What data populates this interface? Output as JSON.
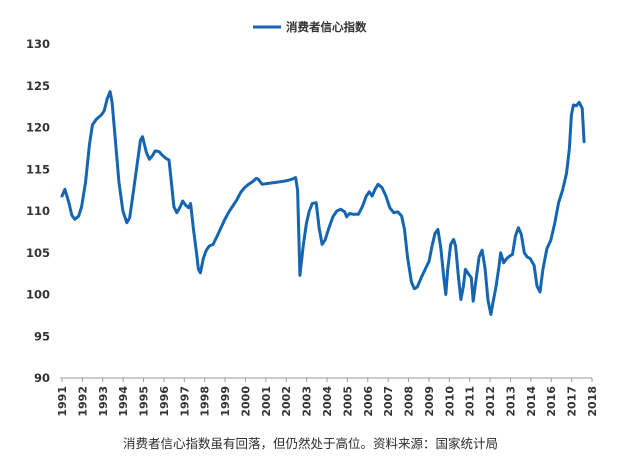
{
  "chart_data": {
    "type": "line",
    "title": "",
    "xlabel": "",
    "ylabel": "",
    "ylim": [
      90,
      130
    ],
    "y_ticks": [
      90,
      95,
      100,
      105,
      110,
      115,
      120,
      125,
      130
    ],
    "x_tick_labels": [
      "1991",
      "1992",
      "1993",
      "1994",
      "1995",
      "1996",
      "1997",
      "1998",
      "1999",
      "2000",
      "2001",
      "2002",
      "2003",
      "2004",
      "2005",
      "2006",
      "2007",
      "2008",
      "2009",
      "2010",
      "2011",
      "2012",
      "2013",
      "2014",
      "2016",
      "2017",
      "2018"
    ],
    "grid": false,
    "legend": "top-center",
    "line_color": "#1565b0",
    "series": [
      {
        "name": "消费者信心指数",
        "points": [
          [
            1991.0,
            111.8
          ],
          [
            1991.15,
            112.6
          ],
          [
            1991.35,
            111.0
          ],
          [
            1991.5,
            109.5
          ],
          [
            1991.65,
            109.0
          ],
          [
            1991.85,
            109.4
          ],
          [
            1992.0,
            110.5
          ],
          [
            1992.2,
            113.5
          ],
          [
            1992.4,
            118.0
          ],
          [
            1992.55,
            120.3
          ],
          [
            1992.75,
            121.0
          ],
          [
            1993.0,
            121.5
          ],
          [
            1993.15,
            122.0
          ],
          [
            1993.3,
            123.4
          ],
          [
            1993.45,
            124.3
          ],
          [
            1993.55,
            123.0
          ],
          [
            1993.7,
            119.0
          ],
          [
            1993.9,
            113.5
          ],
          [
            1994.1,
            110.0
          ],
          [
            1994.3,
            108.6
          ],
          [
            1994.45,
            109.2
          ],
          [
            1994.65,
            112.5
          ],
          [
            1994.85,
            116.0
          ],
          [
            1995.0,
            118.5
          ],
          [
            1995.1,
            118.9
          ],
          [
            1995.3,
            117.0
          ],
          [
            1995.45,
            116.2
          ],
          [
            1995.6,
            116.6
          ],
          [
            1995.75,
            117.2
          ],
          [
            1995.95,
            117.1
          ],
          [
            1996.1,
            116.7
          ],
          [
            1996.3,
            116.3
          ],
          [
            1996.45,
            116.1
          ],
          [
            1996.55,
            114.0
          ],
          [
            1996.7,
            110.5
          ],
          [
            1996.85,
            109.8
          ],
          [
            1997.0,
            110.4
          ],
          [
            1997.15,
            111.2
          ],
          [
            1997.3,
            110.7
          ],
          [
            1997.45,
            110.4
          ],
          [
            1997.55,
            110.9
          ],
          [
            1997.7,
            107.8
          ],
          [
            1997.85,
            105.0
          ],
          [
            1997.95,
            103.0
          ],
          [
            1998.05,
            102.6
          ],
          [
            1998.2,
            104.3
          ],
          [
            1998.35,
            105.3
          ],
          [
            1998.5,
            105.8
          ],
          [
            1998.7,
            106.0
          ],
          [
            1998.9,
            107.0
          ],
          [
            1999.1,
            108.0
          ],
          [
            1999.3,
            109.0
          ],
          [
            1999.5,
            109.9
          ],
          [
            1999.7,
            110.6
          ],
          [
            1999.9,
            111.3
          ],
          [
            2000.1,
            112.2
          ],
          [
            2000.3,
            112.8
          ],
          [
            2000.5,
            113.2
          ],
          [
            2000.7,
            113.5
          ],
          [
            2000.9,
            113.9
          ],
          [
            2001.0,
            113.8
          ],
          [
            2001.2,
            113.2
          ],
          [
            2001.5,
            113.3
          ],
          [
            2001.8,
            113.4
          ],
          [
            2002.1,
            113.5
          ],
          [
            2002.4,
            113.6
          ],
          [
            2002.7,
            113.8
          ],
          [
            2002.9,
            114.0
          ],
          [
            2003.0,
            112.5
          ],
          [
            2003.12,
            102.3
          ],
          [
            2003.3,
            106.0
          ],
          [
            2003.45,
            108.5
          ],
          [
            2003.6,
            110.0
          ],
          [
            2003.75,
            110.9
          ],
          [
            2003.95,
            111.0
          ],
          [
            2004.1,
            108.0
          ],
          [
            2004.25,
            106.0
          ],
          [
            2004.4,
            106.5
          ],
          [
            2004.6,
            108.0
          ],
          [
            2004.8,
            109.3
          ],
          [
            2005.0,
            110.0
          ],
          [
            2005.2,
            110.2
          ],
          [
            2005.4,
            109.9
          ],
          [
            2005.5,
            109.3
          ],
          [
            2005.65,
            109.7
          ],
          [
            2005.85,
            109.6
          ],
          [
            2006.1,
            109.6
          ],
          [
            2006.3,
            110.5
          ],
          [
            2006.5,
            111.8
          ],
          [
            2006.65,
            112.3
          ],
          [
            2006.8,
            111.8
          ],
          [
            2006.95,
            112.6
          ],
          [
            2007.1,
            113.2
          ],
          [
            2007.3,
            112.8
          ],
          [
            2007.5,
            111.8
          ],
          [
            2007.7,
            110.4
          ],
          [
            2007.9,
            109.8
          ],
          [
            2008.1,
            109.9
          ],
          [
            2008.3,
            109.4
          ],
          [
            2008.45,
            107.8
          ],
          [
            2008.6,
            104.5
          ],
          [
            2008.8,
            101.5
          ],
          [
            2008.95,
            100.7
          ],
          [
            2009.1,
            100.9
          ],
          [
            2009.3,
            102.0
          ],
          [
            2009.5,
            103.0
          ],
          [
            2009.7,
            104.0
          ],
          [
            2009.85,
            105.8
          ],
          [
            2010.0,
            107.3
          ],
          [
            2010.15,
            107.8
          ],
          [
            2010.3,
            105.5
          ],
          [
            2010.45,
            102.0
          ],
          [
            2010.55,
            100.0
          ],
          [
            2010.65,
            103.0
          ],
          [
            2010.8,
            106.0
          ],
          [
            2010.95,
            106.6
          ],
          [
            2011.05,
            105.8
          ],
          [
            2011.2,
            102.0
          ],
          [
            2011.32,
            99.4
          ],
          [
            2011.45,
            101.0
          ],
          [
            2011.55,
            103.0
          ],
          [
            2011.7,
            102.5
          ],
          [
            2011.85,
            102.0
          ],
          [
            2011.95,
            99.2
          ],
          [
            2012.05,
            101.0
          ],
          [
            2012.25,
            104.5
          ],
          [
            2012.4,
            105.3
          ],
          [
            2012.55,
            103.2
          ],
          [
            2012.7,
            99.3
          ],
          [
            2012.85,
            97.6
          ],
          [
            2012.95,
            99.0
          ],
          [
            2013.1,
            100.8
          ],
          [
            2013.25,
            103.2
          ],
          [
            2013.35,
            105.0
          ],
          [
            2013.5,
            103.8
          ],
          [
            2013.65,
            104.3
          ],
          [
            2013.8,
            104.6
          ],
          [
            2013.95,
            104.8
          ],
          [
            2014.1,
            107.0
          ],
          [
            2014.25,
            108.0
          ],
          [
            2014.4,
            107.2
          ],
          [
            2014.55,
            105.0
          ],
          [
            2014.7,
            104.5
          ],
          [
            2014.85,
            104.3
          ],
          [
            2015.05,
            103.5
          ],
          [
            2015.2,
            101.0
          ],
          [
            2015.35,
            100.3
          ],
          [
            2015.5,
            103.0
          ],
          [
            2015.7,
            105.5
          ],
          [
            2015.9,
            106.5
          ],
          [
            2016.1,
            108.5
          ],
          [
            2016.3,
            111.0
          ],
          [
            2016.5,
            112.5
          ],
          [
            2016.7,
            114.5
          ],
          [
            2016.85,
            117.5
          ],
          [
            2016.95,
            121.5
          ],
          [
            2017.05,
            122.7
          ],
          [
            2017.2,
            122.6
          ],
          [
            2017.35,
            123.0
          ],
          [
            2017.5,
            122.3
          ],
          [
            2017.6,
            118.3
          ]
        ]
      }
    ]
  },
  "caption": "消费者信心指数虽有回落，但仍然处于高位。资料来源：国家统计局"
}
